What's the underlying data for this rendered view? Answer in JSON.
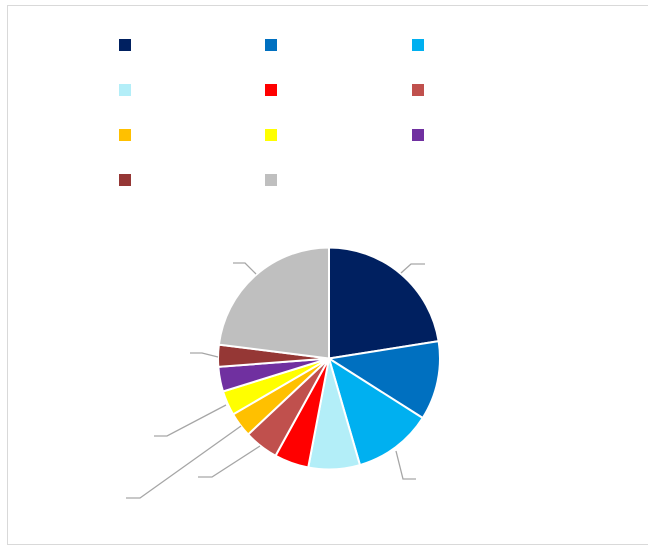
{
  "chart_data": {
    "type": "pie",
    "title": "",
    "legend_position": "top",
    "slices": [
      {
        "label": "",
        "value": 22.5,
        "color": "#002060"
      },
      {
        "label": "",
        "value": 11.5,
        "color": "#0070C0"
      },
      {
        "label": "",
        "value": 11.5,
        "color": "#00B0F0"
      },
      {
        "label": "",
        "value": 7.5,
        "color": "#B3EEF8"
      },
      {
        "label": "",
        "value": 5.0,
        "color": "#FF0000"
      },
      {
        "label": "",
        "value": 5.0,
        "color": "#C0504D"
      },
      {
        "label": "",
        "value": 3.6,
        "color": "#FFC000"
      },
      {
        "label": "",
        "value": 3.6,
        "color": "#FFFF00"
      },
      {
        "label": "",
        "value": 3.6,
        "color": "#7030A0"
      },
      {
        "label": "",
        "value": 3.2,
        "color": "#953735"
      },
      {
        "label": "",
        "value": 23.0,
        "color": "#BFBFBF"
      }
    ]
  }
}
